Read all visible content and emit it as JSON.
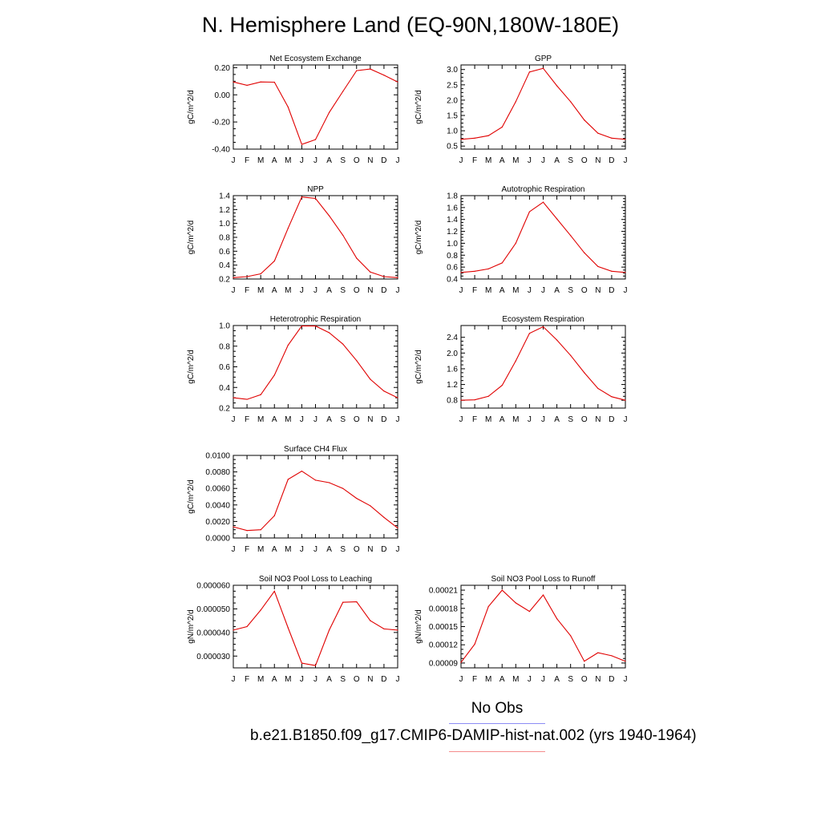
{
  "title": "N. Hemisphere Land (EQ-90N,180W-180E)",
  "legend": {
    "obs_label": "No Obs",
    "case_label": "b.e21.B1850.f09_g17.CMIP6-DAMIP-hist-nat.002 (yrs 1940-1964)",
    "obs_color": "#8c8cf5",
    "case_color": "#f58c8c"
  },
  "colors": {
    "series": "#e00000",
    "axis": "#000000"
  },
  "chart_data": [
    {
      "type": "line",
      "title": "Net Ecosystem Exchange",
      "ylabel": "gC/m^2/d",
      "categories": [
        "J",
        "F",
        "M",
        "A",
        "M",
        "J",
        "J",
        "A",
        "S",
        "O",
        "N",
        "D",
        "J"
      ],
      "values": [
        0.095,
        0.07,
        0.095,
        0.093,
        -0.09,
        -0.365,
        -0.33,
        -0.13,
        0.025,
        0.178,
        0.19,
        0.145,
        0.095
      ],
      "ylim": [
        -0.4,
        0.22
      ],
      "yticks": [
        -0.4,
        -0.2,
        0.0,
        0.2
      ],
      "ytick_labels": [
        "-0.40",
        "-0.20",
        "0.00",
        "0.20"
      ]
    },
    {
      "type": "line",
      "title": "GPP",
      "ylabel": "gC/m^2/d",
      "categories": [
        "J",
        "F",
        "M",
        "A",
        "M",
        "J",
        "J",
        "A",
        "S",
        "O",
        "N",
        "D",
        "J"
      ],
      "values": [
        0.72,
        0.76,
        0.84,
        1.12,
        1.95,
        2.92,
        3.04,
        2.47,
        1.95,
        1.35,
        0.92,
        0.76,
        0.72
      ],
      "ylim": [
        0.4,
        3.15
      ],
      "yticks": [
        0.5,
        1.0,
        1.5,
        2.0,
        2.5,
        3.0
      ],
      "ytick_labels": [
        "0.5",
        "1.0",
        "1.5",
        "2.0",
        "2.5",
        "3.0"
      ]
    },
    {
      "type": "line",
      "title": "NPP",
      "ylabel": "gC/m^2/d",
      "categories": [
        "J",
        "F",
        "M",
        "A",
        "M",
        "J",
        "J",
        "A",
        "S",
        "O",
        "N",
        "D",
        "J"
      ],
      "values": [
        0.22,
        0.235,
        0.275,
        0.46,
        0.93,
        1.38,
        1.36,
        1.11,
        0.83,
        0.5,
        0.3,
        0.235,
        0.22
      ],
      "ylim": [
        0.2,
        1.4
      ],
      "yticks": [
        0.2,
        0.4,
        0.6,
        0.8,
        1.0,
        1.2,
        1.4
      ],
      "ytick_labels": [
        "0.2",
        "0.4",
        "0.6",
        "0.8",
        "1.0",
        "1.2",
        "1.4"
      ]
    },
    {
      "type": "line",
      "title": "Autotrophic Respiration",
      "ylabel": "gC/m^2/d",
      "categories": [
        "J",
        "F",
        "M",
        "A",
        "M",
        "J",
        "J",
        "A",
        "S",
        "O",
        "N",
        "D",
        "J"
      ],
      "values": [
        0.51,
        0.53,
        0.57,
        0.67,
        1.0,
        1.53,
        1.69,
        1.41,
        1.13,
        0.84,
        0.61,
        0.53,
        0.51
      ],
      "ylim": [
        0.4,
        1.8
      ],
      "yticks": [
        0.4,
        0.6,
        0.8,
        1.0,
        1.2,
        1.4,
        1.6,
        1.8
      ],
      "ytick_labels": [
        "0.4",
        "0.6",
        "0.8",
        "1.0",
        "1.2",
        "1.4",
        "1.6",
        "1.8"
      ]
    },
    {
      "type": "line",
      "title": "Heterotrophic Respiration",
      "ylabel": "gC/m^2/d",
      "categories": [
        "J",
        "F",
        "M",
        "A",
        "M",
        "J",
        "J",
        "A",
        "S",
        "O",
        "N",
        "D",
        "J"
      ],
      "values": [
        0.3,
        0.285,
        0.33,
        0.52,
        0.81,
        0.995,
        0.995,
        0.93,
        0.82,
        0.66,
        0.48,
        0.365,
        0.3
      ],
      "ylim": [
        0.2,
        1.0
      ],
      "yticks": [
        0.2,
        0.4,
        0.6,
        0.8,
        1.0
      ],
      "ytick_labels": [
        "0.2",
        "0.4",
        "0.6",
        "0.8",
        "1.0"
      ]
    },
    {
      "type": "line",
      "title": "Ecosystem Respiration",
      "ylabel": "gC/m^2/d",
      "categories": [
        "J",
        "F",
        "M",
        "A",
        "M",
        "J",
        "J",
        "A",
        "S",
        "O",
        "N",
        "D",
        "J"
      ],
      "values": [
        0.8,
        0.81,
        0.9,
        1.18,
        1.8,
        2.5,
        2.67,
        2.33,
        1.94,
        1.5,
        1.1,
        0.89,
        0.8
      ],
      "ylim": [
        0.6,
        2.7
      ],
      "yticks": [
        0.8,
        1.2,
        1.6,
        2.0,
        2.4
      ],
      "ytick_labels": [
        "0.8",
        "1.2",
        "1.6",
        "2.0",
        "2.4"
      ]
    },
    {
      "type": "line",
      "title": "Surface CH4 Flux",
      "ylabel": "gC/m^2/d",
      "categories": [
        "J",
        "F",
        "M",
        "A",
        "M",
        "J",
        "J",
        "A",
        "S",
        "O",
        "N",
        "D",
        "J"
      ],
      "values": [
        0.00135,
        0.0009,
        0.001,
        0.0027,
        0.0071,
        0.0081,
        0.007,
        0.0067,
        0.006,
        0.0048,
        0.0039,
        0.0025,
        0.0012
      ],
      "ylim": [
        0.0,
        0.01
      ],
      "yticks": [
        0.0,
        0.002,
        0.004,
        0.006,
        0.008,
        0.01
      ],
      "ytick_labels": [
        "0.0000",
        "0.0020",
        "0.0040",
        "0.0060",
        "0.0080",
        "0.0100"
      ]
    },
    {
      "type": "line",
      "title": "Soil NO3 Pool Loss to Leaching",
      "ylabel": "gN/m^2/d",
      "categories": [
        "J",
        "F",
        "M",
        "A",
        "M",
        "J",
        "J",
        "A",
        "S",
        "O",
        "N",
        "D",
        "J"
      ],
      "values": [
        4.1e-05,
        4.25e-05,
        4.95e-05,
        5.75e-05,
        4.2e-05,
        2.7e-05,
        2.6e-05,
        4.1e-05,
        5.28e-05,
        5.3e-05,
        4.5e-05,
        4.15e-05,
        4.1e-05
      ],
      "ylim": [
        2.5e-05,
        6e-05
      ],
      "yticks": [
        3e-05,
        4e-05,
        5e-05,
        6e-05
      ],
      "ytick_labels": [
        "0.000030",
        "0.000040",
        "0.000050",
        "0.000060"
      ]
    },
    {
      "type": "line",
      "title": "Soil NO3 Pool Loss to Runoff",
      "ylabel": "gN/m^2/d",
      "categories": [
        "J",
        "F",
        "M",
        "A",
        "M",
        "J",
        "J",
        "A",
        "S",
        "O",
        "N",
        "D",
        "J"
      ],
      "values": [
        9.1e-05,
        0.000121,
        0.000183,
        0.00021,
        0.000189,
        0.000175,
        0.000202,
        0.000163,
        0.000135,
        9.3e-05,
        0.000107,
        0.000102,
        9.3e-05
      ],
      "ylim": [
        8.2e-05,
        0.000218
      ],
      "yticks": [
        9e-05,
        0.00012,
        0.00015,
        0.00018,
        0.00021
      ],
      "ytick_labels": [
        "0.00009",
        "0.00012",
        "0.00015",
        "0.00018",
        "0.00021"
      ]
    }
  ]
}
